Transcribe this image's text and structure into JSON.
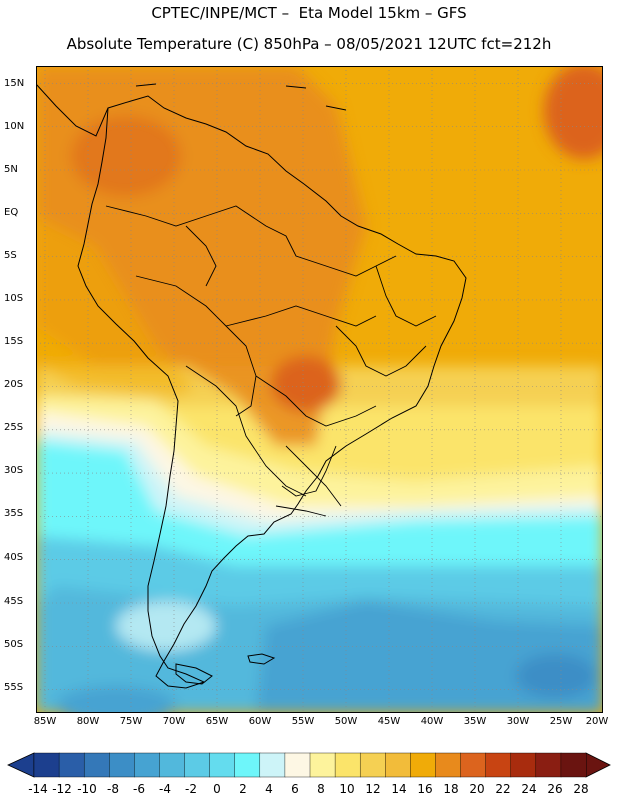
{
  "header": {
    "line1": "CPTEC/INPE/MCT –  Eta Model 15km – GFS",
    "line2": "Absolute Temperature (C) 850hPa – 08/05/2021 12UTC fct=212h"
  },
  "axes": {
    "lat_labels": [
      "15N",
      "10N",
      "5N",
      "EQ",
      "5S",
      "10S",
      "15S",
      "20S",
      "25S",
      "30S",
      "35S",
      "40S",
      "45S",
      "50S",
      "55S"
    ],
    "lon_labels": [
      "85W",
      "80W",
      "75W",
      "70W",
      "65W",
      "60W",
      "55W",
      "50W",
      "45W",
      "40W",
      "35W",
      "30W",
      "25W",
      "20W"
    ]
  },
  "colorbar": {
    "labels": [
      "-14",
      "-12",
      "-10",
      "-8",
      "-6",
      "-4",
      "-2",
      "0",
      "2",
      "4",
      "6",
      "8",
      "10",
      "12",
      "14",
      "16",
      "18",
      "20",
      "22",
      "24",
      "26",
      "28"
    ],
    "colors": [
      "#1c3f8e",
      "#2a5ea8",
      "#3478b8",
      "#3c8ec6",
      "#46a3d2",
      "#52b8dc",
      "#5ccbe6",
      "#64dcee",
      "#6ef6fa",
      "#cdf4f8",
      "#fdf7e4",
      "#fdf39c",
      "#fbe46a",
      "#f5d053",
      "#f2bc3a",
      "#f0ab08",
      "#e88a1c",
      "#dc641e",
      "#c84412",
      "#a82c0e",
      "#8a1e12",
      "#6a1410"
    ]
  }
}
